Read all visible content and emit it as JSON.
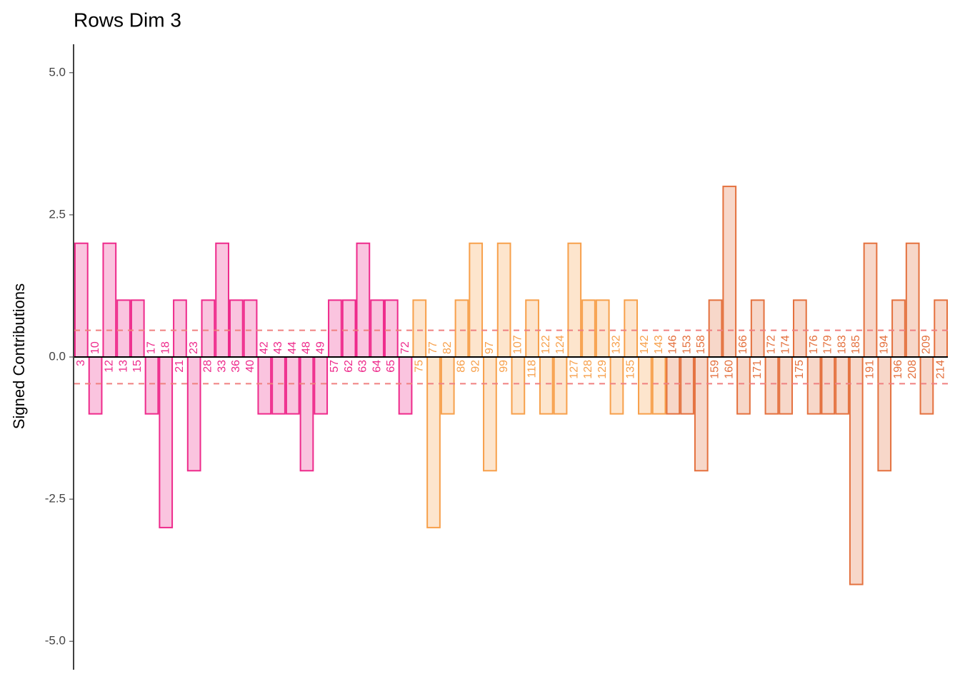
{
  "chart_data": {
    "type": "bar",
    "title": "Rows Dim 3",
    "y_label": "Signed Contributions",
    "categories": [
      "3",
      "10",
      "12",
      "13",
      "15",
      "17",
      "18",
      "21",
      "23",
      "28",
      "33",
      "36",
      "40",
      "42",
      "43",
      "44",
      "48",
      "49",
      "57",
      "62",
      "63",
      "64",
      "65",
      "72",
      "75",
      "77",
      "82",
      "86",
      "92",
      "97",
      "99",
      "107",
      "118",
      "122",
      "124",
      "127",
      "128",
      "129",
      "132",
      "135",
      "142",
      "143",
      "146",
      "153",
      "158",
      "159",
      "160",
      "166",
      "171",
      "172",
      "174",
      "175",
      "176",
      "179",
      "183",
      "185",
      "191",
      "194",
      "196",
      "208",
      "209",
      "214"
    ],
    "values": [
      2,
      -1,
      2,
      1,
      1,
      -1,
      -3,
      1,
      -2,
      1,
      2,
      1,
      1,
      -1,
      -1,
      -1,
      -2,
      -1,
      1,
      1,
      2,
      1,
      1,
      -1,
      1,
      -3,
      -1,
      1,
      2,
      -2,
      2,
      -1,
      1,
      -1,
      -1,
      2,
      1,
      1,
      -1,
      1,
      -1,
      -1,
      -1,
      -1,
      -2,
      1,
      3,
      -1,
      1,
      -1,
      -1,
      1,
      -1,
      -1,
      -1,
      -4,
      2,
      -2,
      1,
      2,
      -1,
      1
    ],
    "colors": [
      "#ee2a8b",
      "#ee2a8b",
      "#ee2a8b",
      "#ee2a8b",
      "#ee2a8b",
      "#ee2a8b",
      "#ee2a8b",
      "#ee2a8b",
      "#ee2a8b",
      "#ee2a8b",
      "#ee2a8b",
      "#ee2a8b",
      "#ee2a8b",
      "#ee2a8b",
      "#ee2a8b",
      "#ee2a8b",
      "#ee2a8b",
      "#ee2a8b",
      "#ee2a8b",
      "#ee2a8b",
      "#ee2a8b",
      "#ee2a8b",
      "#ee2a8b",
      "#ee2a8b",
      "#f7a04b",
      "#f7a04b",
      "#f7a04b",
      "#f7a04b",
      "#f7a04b",
      "#f7a04b",
      "#f7a04b",
      "#f7a04b",
      "#f7a04b",
      "#f7a04b",
      "#f7a04b",
      "#f7a04b",
      "#f7a04b",
      "#f7a04b",
      "#f7a04b",
      "#f7a04b",
      "#f7a04b",
      "#f7a04b",
      "#e4713e",
      "#e4713e",
      "#e4713e",
      "#e4713e",
      "#e4713e",
      "#e4713e",
      "#e4713e",
      "#e4713e",
      "#e4713e",
      "#e4713e",
      "#e4713e",
      "#e4713e",
      "#e4713e",
      "#e4713e",
      "#e4713e",
      "#e4713e",
      "#e4713e",
      "#e4713e",
      "#e4713e",
      "#e4713e"
    ],
    "threshold_lines": [
      0.47,
      -0.47
    ],
    "threshold_color": "#f08080",
    "ylim": [
      -5.5,
      5.5
    ],
    "yticks": [
      {
        "value": -5,
        "label": "-5.0"
      },
      -2.5,
      {
        "value": 0,
        "label": "0.0"
      },
      2.5,
      {
        "value": 5,
        "label": "5.0"
      }
    ]
  }
}
